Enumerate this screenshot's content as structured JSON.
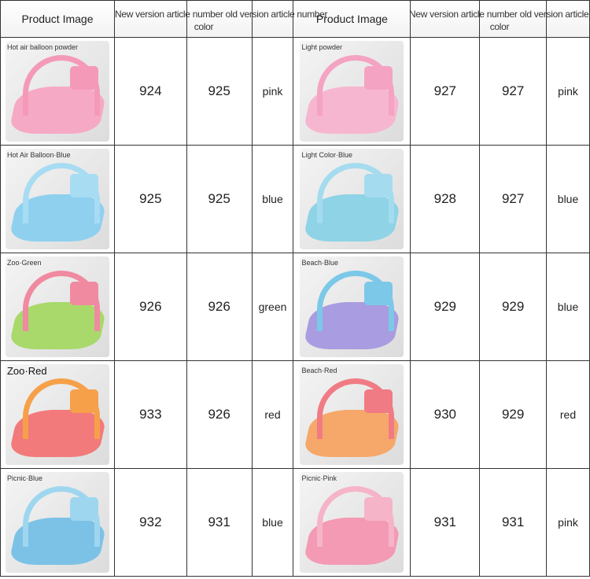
{
  "header": {
    "product_image": "Product Image",
    "new_article": "New version article number",
    "old_article": "old version article number",
    "color": "color"
  },
  "rows": [
    {
      "left": {
        "label": "Hot air balloon powder",
        "new": "924",
        "old": "925",
        "color": "pink",
        "mat": "#f6a9c4",
        "arch": "#f49ab8"
      },
      "right": {
        "label": "Light powder",
        "new": "927",
        "old": "927",
        "color": "pink",
        "mat": "#f7b6cf",
        "arch": "#f5a3c2"
      }
    },
    {
      "left": {
        "label": "Hot Air Balloon·Blue",
        "new": "925",
        "old": "925",
        "color": "blue",
        "mat": "#8fd0ef",
        "arch": "#a7dcf3"
      },
      "right": {
        "label": "Light Color·Blue",
        "new": "928",
        "old": "927",
        "color": "blue",
        "mat": "#8ed3e6",
        "arch": "#a5dbef"
      }
    },
    {
      "left": {
        "label": "Zoo·Green",
        "new": "926",
        "old": "926",
        "color": "green",
        "mat": "#a8d96a",
        "arch": "#f08aa0"
      },
      "right": {
        "label": "Beach·Blue",
        "new": "929",
        "old": "929",
        "color": "blue",
        "mat": "#a99ce0",
        "arch": "#7cc8e8"
      }
    },
    {
      "left": {
        "label": "Zoo·Red",
        "new": "933",
        "old": "926",
        "color": "red",
        "mat": "#f27a7a",
        "arch": "#f6a04a"
      },
      "right": {
        "label": "Beach·Red",
        "new": "930",
        "old": "929",
        "color": "red",
        "mat": "#f5a86a",
        "arch": "#f07b84"
      }
    },
    {
      "left": {
        "label": "Picnic·Blue",
        "new": "932",
        "old": "931",
        "color": "blue",
        "mat": "#7cc2e6",
        "arch": "#9fd6ef"
      },
      "right": {
        "label": "Picnic·Pink",
        "new": "931",
        "old": "931",
        "color": "pink",
        "mat": "#f49ab4",
        "arch": "#f6b4c8"
      }
    }
  ]
}
